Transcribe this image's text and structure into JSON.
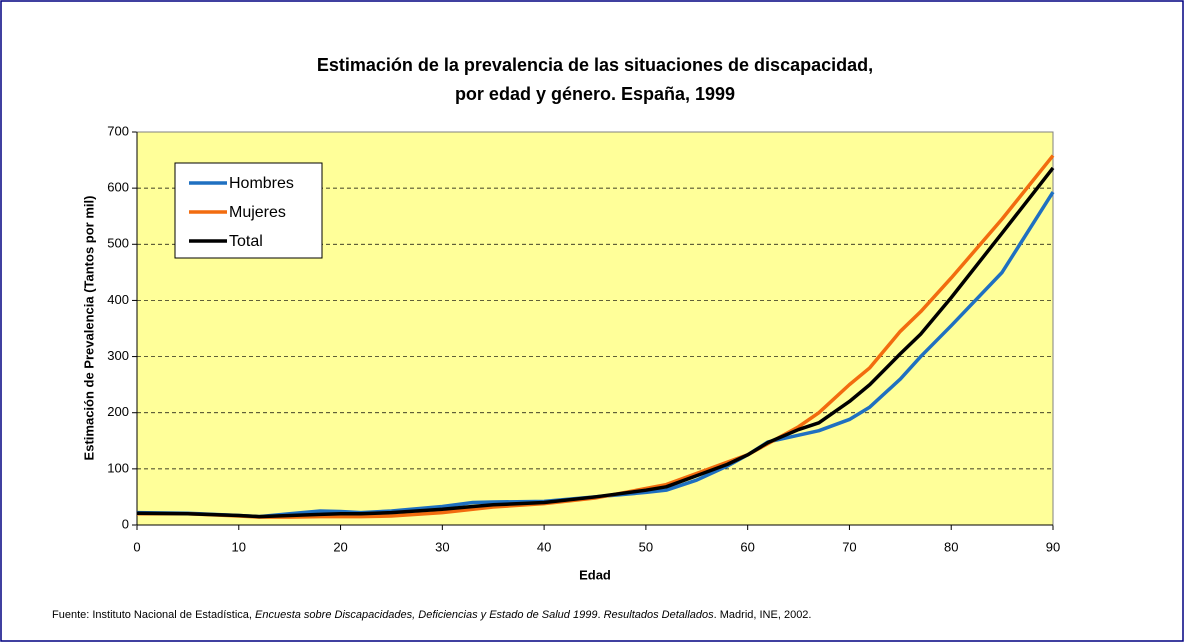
{
  "chart_data": {
    "type": "line",
    "title": [
      "Estimación de la prevalencia de las situaciones de discapacidad,",
      "por edad y género. España, 1999"
    ],
    "x_label": "Edad",
    "y_label": "Estimación de Prevalencia (Tantos por mil)",
    "x": [
      0,
      5,
      10,
      12,
      15,
      18,
      20,
      22,
      25,
      30,
      33,
      35,
      40,
      45,
      50,
      52,
      55,
      58,
      60,
      62,
      65,
      67,
      70,
      72,
      75,
      77,
      80,
      85,
      90
    ],
    "series": [
      {
        "name": "Hombres",
        "color": "#1f70c1",
        "values": [
          22,
          21,
          17,
          15,
          20,
          25,
          24,
          22,
          25,
          33,
          40,
          41,
          42,
          50,
          58,
          62,
          80,
          105,
          125,
          148,
          160,
          168,
          188,
          210,
          260,
          300,
          355,
          450,
          593
        ]
      },
      {
        "name": "Mujeres",
        "color": "#f26c0f",
        "values": [
          20,
          20,
          16,
          14,
          14,
          15,
          15,
          15,
          16,
          22,
          28,
          32,
          38,
          48,
          65,
          72,
          92,
          112,
          125,
          145,
          175,
          200,
          250,
          280,
          345,
          380,
          440,
          545,
          658
        ]
      },
      {
        "name": "Total",
        "color": "#000000",
        "values": [
          21,
          20,
          17,
          15,
          17,
          19,
          20,
          20,
          22,
          28,
          33,
          36,
          40,
          50,
          62,
          68,
          88,
          108,
          125,
          147,
          170,
          182,
          220,
          250,
          305,
          340,
          405,
          520,
          636
        ]
      }
    ],
    "xlim": [
      0,
      90
    ],
    "xticks": [
      0,
      10,
      20,
      30,
      40,
      50,
      60,
      70,
      80,
      90
    ],
    "ylim": [
      0,
      700
    ],
    "yticks": [
      0,
      100,
      200,
      300,
      400,
      500,
      600,
      700
    ],
    "grid": true,
    "legend": "upper left",
    "plot_background": "#ffff99",
    "source": [
      "Fuente:  Instituto Nacional de Estadística, ",
      "Encuesta sobre Discapacidades, Deficiencias y Estado de Salud 1999",
      ". ",
      "Resultados Detallados",
      ". Madrid, INE, 2002."
    ]
  }
}
